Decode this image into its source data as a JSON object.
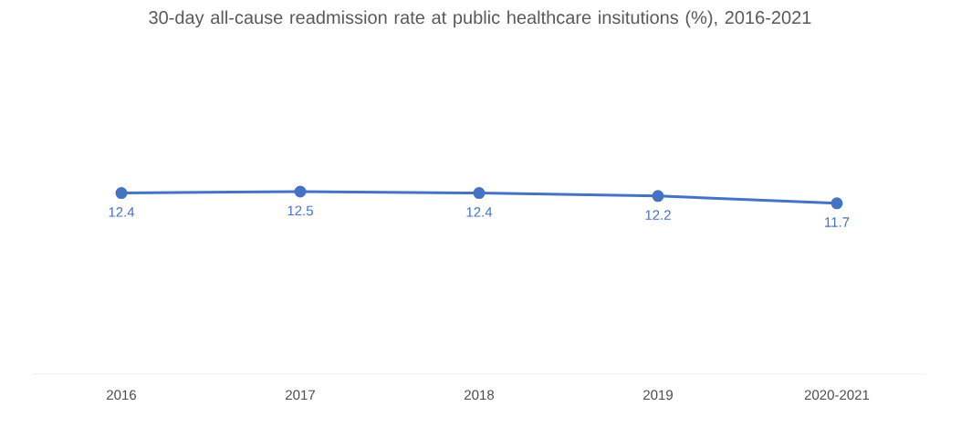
{
  "chart_data": {
    "type": "line",
    "title": "30-day all-cause readmission rate at public healthcare insitutions (%), 2016-2021",
    "categories": [
      "2016",
      "2017",
      "2018",
      "2019",
      "2020-2021"
    ],
    "series": [
      {
        "color": "#4472c4",
        "values": [
          12.4,
          12.5,
          12.4,
          12.2,
          11.7
        ]
      }
    ],
    "data_labels": true,
    "marker": "circle",
    "tick_labels": "x"
  }
}
